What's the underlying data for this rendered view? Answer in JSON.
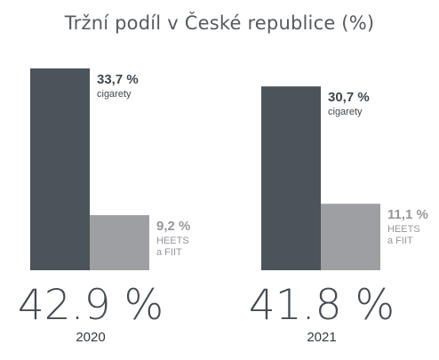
{
  "title": "Tržní podíl v České republice (%)",
  "colors": {
    "dark": "#4b545a",
    "light": "#9e9fa3",
    "dark_text": "#3f474d",
    "light_text": "#95979b"
  },
  "chart_data": {
    "type": "bar",
    "title": "Tržní podíl v České republice (%)",
    "groups": [
      {
        "year": "2020",
        "total": "42.9 %",
        "bars": [
          {
            "value": 33.7,
            "label": "33,7 %",
            "series": [
              "cigarety"
            ]
          },
          {
            "value": 9.2,
            "label": "9,2 %",
            "series": [
              "HEETS",
              "a FIIT"
            ]
          }
        ]
      },
      {
        "year": "2021",
        "total": "41.8 %",
        "bars": [
          {
            "value": 30.7,
            "label": "30,7 %",
            "series": [
              "cigarety"
            ]
          },
          {
            "value": 11.1,
            "label": "11,1 %",
            "series": [
              "HEETS",
              "a FIIT"
            ]
          }
        ]
      }
    ],
    "series_names": [
      "cigarety",
      "HEETS a FIIT"
    ]
  }
}
